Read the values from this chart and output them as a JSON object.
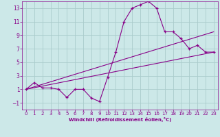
{
  "xlabel": "Windchill (Refroidissement éolien,°C)",
  "background_color": "#cce8e8",
  "line_color": "#880088",
  "xlim": [
    -0.5,
    23.5
  ],
  "ylim": [
    -2,
    14
  ],
  "xticks": [
    0,
    1,
    2,
    3,
    4,
    5,
    6,
    7,
    8,
    9,
    10,
    11,
    12,
    13,
    14,
    15,
    16,
    17,
    18,
    19,
    20,
    21,
    22,
    23
  ],
  "yticks": [
    -1,
    1,
    3,
    5,
    7,
    9,
    11,
    13
  ],
  "grid_color": "#aacccc",
  "series1": {
    "x": [
      0,
      1,
      2,
      3,
      4,
      5,
      6,
      7,
      8,
      9,
      10,
      11,
      12,
      13,
      14,
      15,
      16,
      17,
      18,
      19,
      20,
      21,
      22,
      23
    ],
    "y": [
      1.0,
      2.0,
      1.2,
      1.2,
      1.0,
      -0.2,
      1.0,
      1.0,
      -0.3,
      -0.8,
      2.8,
      6.5,
      11.0,
      13.0,
      13.5,
      14.0,
      13.0,
      9.5,
      9.5,
      8.5,
      7.0,
      7.5,
      6.5,
      6.5
    ]
  },
  "series2": {
    "x": [
      0,
      23
    ],
    "y": [
      1.0,
      6.5
    ]
  },
  "series3": {
    "x": [
      0,
      23
    ],
    "y": [
      1.0,
      9.5
    ]
  }
}
